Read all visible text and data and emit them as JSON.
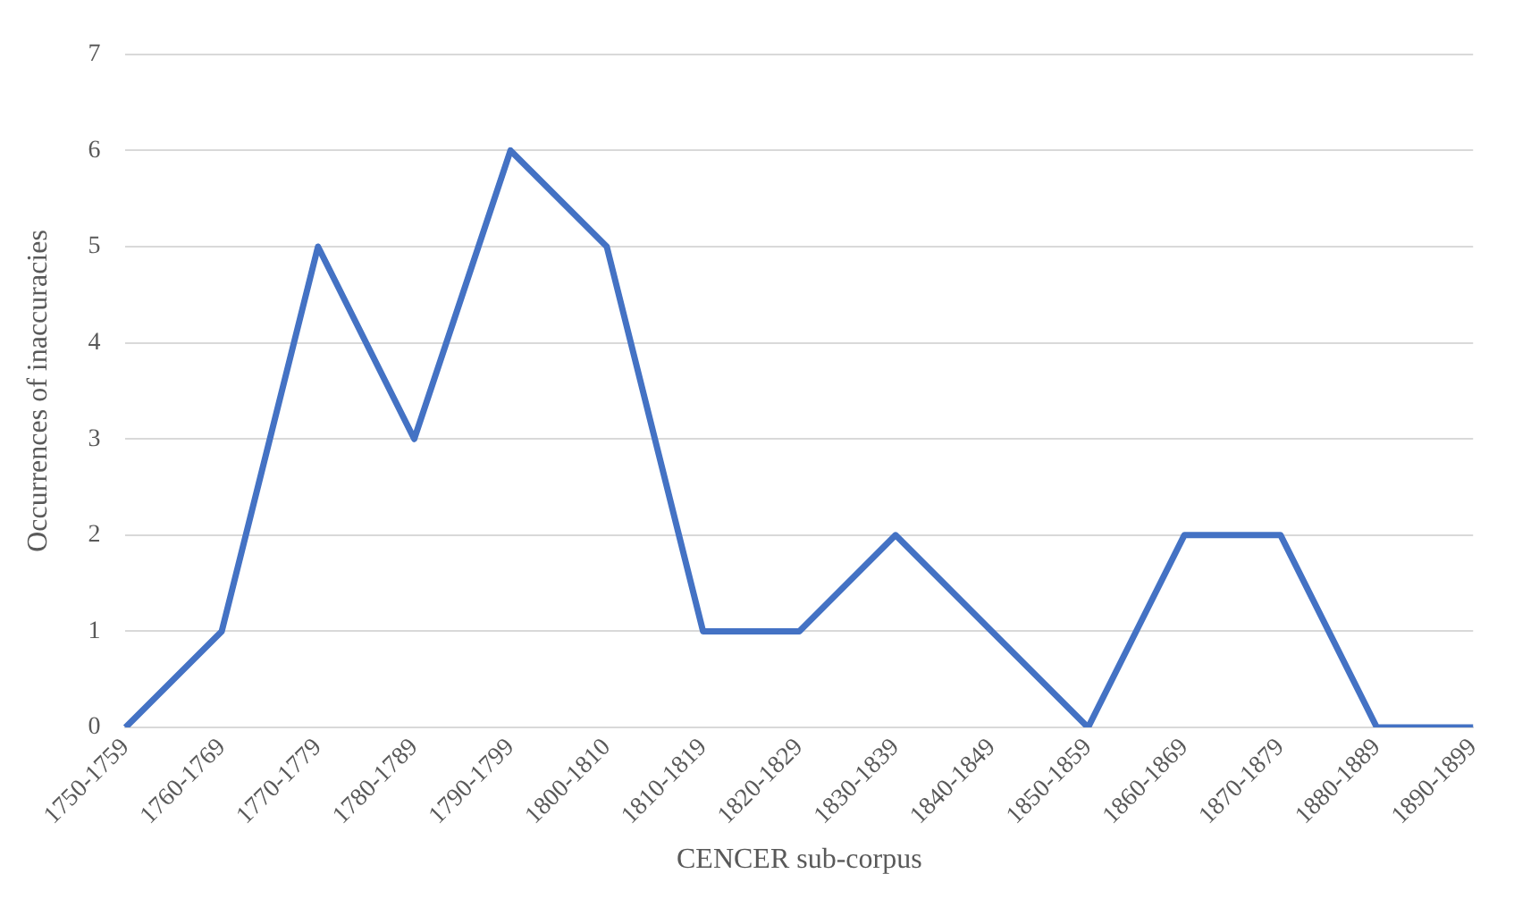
{
  "chart_data": {
    "type": "line",
    "xlabel": "CENCER sub-corpus",
    "ylabel": "Occurrences of inaccuracies",
    "categories": [
      "1750-1759",
      "1760-1769",
      "1770-1779",
      "1780-1789",
      "1790-1799",
      "1800-1810",
      "1810-1819",
      "1820-1829",
      "1830-1839",
      "1840-1849",
      "1850-1859",
      "1860-1869",
      "1870-1879",
      "1880-1889",
      "1890-1899"
    ],
    "series": [
      {
        "color": "#4472c4",
        "values": [
          0,
          1,
          5,
          3,
          6,
          5,
          1,
          1,
          2,
          1,
          0,
          2,
          2,
          0,
          0
        ]
      }
    ],
    "ylim": [
      0,
      7
    ],
    "yticks": [
      0,
      1,
      2,
      3,
      4,
      5,
      6,
      7
    ],
    "grid": "y",
    "legend": false,
    "marker": "none",
    "line_style": "solid"
  }
}
